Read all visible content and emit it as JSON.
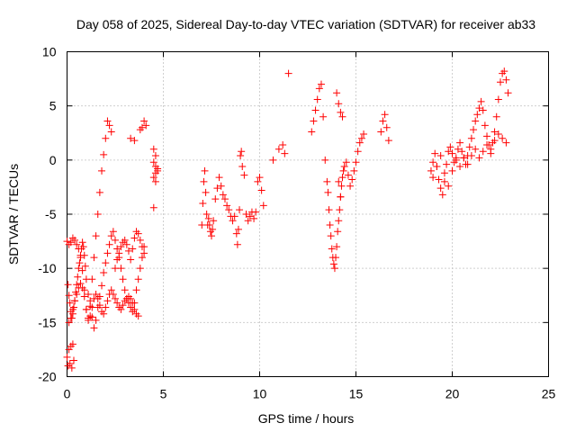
{
  "chart_data": {
    "type": "scatter",
    "title": "Day 058 of 2025, Sidereal Day-to-day VTEC variation (SDTVAR) for receiver ab33",
    "xlabel": "GPS time / hours",
    "ylabel": "SDTVAR / TECUs",
    "xlim": [
      0,
      25
    ],
    "ylim": [
      -20,
      10
    ],
    "xticks": [
      0,
      5,
      10,
      15,
      20,
      25
    ],
    "yticks": [
      -20,
      -15,
      -10,
      -5,
      0,
      5,
      10
    ],
    "xtick_labels": [
      "0",
      "5",
      "10",
      "15",
      "20",
      "25"
    ],
    "ytick_labels": [
      "-20",
      "-15",
      "-10",
      "-5",
      "0",
      "5",
      "10"
    ],
    "grid": true,
    "marker": "plus",
    "color": "#ff0000",
    "series": [
      {
        "name": "SDTVAR",
        "x": [
          0.0,
          0.05,
          0.1,
          0.15,
          0.2,
          0.25,
          0.3,
          0.35,
          0.05,
          0.1,
          0.15,
          0.2,
          0.25,
          0.3,
          0.35,
          0.4,
          0.45,
          0.5,
          0.55,
          0.6,
          0.65,
          0.7,
          0.75,
          0.8,
          0.85,
          0.9,
          0.95,
          1.0,
          1.1,
          1.2,
          1.3,
          1.4,
          1.5,
          1.6,
          1.7,
          1.8,
          1.9,
          2.0,
          2.1,
          2.2,
          2.3,
          2.4,
          2.5,
          2.6,
          2.7,
          2.8,
          2.9,
          3.0,
          3.1,
          3.2,
          3.3,
          3.4,
          3.5,
          3.6,
          3.7,
          3.8,
          3.9,
          4.0,
          0.0,
          0.1,
          0.2,
          0.3,
          0.4,
          0.5,
          0.6,
          0.7,
          0.8,
          0.9,
          1.0,
          1.1,
          1.2,
          1.3,
          1.4,
          1.5,
          1.6,
          1.7,
          1.8,
          1.9,
          2.0,
          2.1,
          2.2,
          2.3,
          0.1,
          0.2,
          0.3,
          0.4,
          0.5,
          0.6,
          0.7,
          0.8,
          0.9,
          1.0,
          1.1,
          1.2,
          1.3,
          1.4,
          1.5,
          1.6,
          1.7,
          1.8,
          1.9,
          2.0,
          2.1,
          2.2,
          2.3,
          2.4,
          2.5,
          2.6,
          2.7,
          2.8,
          2.9,
          3.0,
          3.1,
          3.2,
          3.3,
          3.4,
          3.5,
          3.6,
          3.7,
          2.5,
          2.6,
          2.7,
          2.8,
          2.9,
          3.0,
          3.1,
          3.2,
          3.3,
          3.4,
          3.5,
          3.6,
          3.7,
          3.8,
          3.9,
          4.0,
          3.9,
          4.0,
          4.1,
          3.8,
          3.3,
          3.5,
          4.5,
          4.6,
          4.5,
          4.6,
          4.7,
          4.5,
          4.6,
          4.5,
          4.6,
          4.7
        ],
        "y": [
          -18.2,
          -19.0,
          -17.5,
          -18.8,
          -17.2,
          -19.2,
          -17.0,
          -18.5,
          -11.5,
          -12.5,
          -13.2,
          -14.0,
          -14.6,
          -14.2,
          -13.6,
          -13.0,
          -12.2,
          -11.5,
          -10.8,
          -10.0,
          -9.5,
          -8.8,
          -8.2,
          -7.6,
          -8.0,
          -8.8,
          -9.8,
          -11.0,
          -12.4,
          -13.5,
          -14.5,
          -15.5,
          -14.8,
          -13.6,
          -12.6,
          -11.6,
          -10.4,
          -9.5,
          -8.6,
          -7.8,
          -7.0,
          -6.6,
          -7.4,
          -8.2,
          -9.0,
          -10.0,
          -11.0,
          -12.0,
          -12.8,
          -13.2,
          -13.6,
          -14.0,
          -13.2,
          -12.0,
          -11.0,
          -10.0,
          -9.0,
          -8.0,
          -7.5,
          -7.8,
          -7.6,
          -7.2,
          -7.4,
          -7.8,
          -8.2,
          -9.0,
          -10.2,
          -12.0,
          -13.8,
          -14.6,
          -13.0,
          -11.0,
          -9.0,
          -7.0,
          -5.0,
          -3.0,
          -1.0,
          0.5,
          2.0,
          3.6,
          3.2,
          2.6,
          -15.0,
          -14.6,
          -13.8,
          -13.0,
          -12.4,
          -11.8,
          -11.4,
          -11.8,
          -12.6,
          -13.8,
          -14.8,
          -14.4,
          -13.6,
          -12.8,
          -12.4,
          -12.8,
          -13.4,
          -14.0,
          -14.2,
          -13.6,
          -13.0,
          -12.4,
          -12.0,
          -12.4,
          -12.8,
          -13.2,
          -13.6,
          -13.8,
          -13.4,
          -13.0,
          -12.8,
          -12.6,
          -12.8,
          -13.2,
          -13.8,
          -14.2,
          -14.4,
          -10.0,
          -9.2,
          -8.6,
          -8.0,
          -7.6,
          -7.4,
          -7.8,
          -8.4,
          -9.2,
          -8.2,
          -7.2,
          -6.6,
          -6.8,
          -7.4,
          -8.0,
          -8.6,
          3.0,
          3.6,
          3.2,
          2.8,
          2.0,
          1.8,
          1.0,
          0.4,
          -0.2,
          -0.6,
          -1.0,
          -1.6,
          -2.0,
          -4.4,
          -1.2,
          -0.8
        ],
        "x2": [
          7.0,
          7.05,
          7.1,
          7.15,
          7.2,
          7.25,
          7.3,
          7.35,
          7.4,
          7.45,
          7.5,
          7.55,
          7.6,
          7.7,
          7.8,
          7.9,
          8.0,
          8.1,
          8.2,
          8.3,
          8.4,
          8.5,
          8.6,
          8.7,
          8.8,
          8.85,
          8.9,
          8.95,
          9.0,
          9.05,
          9.1,
          9.2,
          9.3,
          9.4,
          9.5,
          9.6,
          9.7,
          9.8,
          9.9,
          10.0,
          10.1,
          10.2,
          10.7,
          11.0,
          11.2,
          11.3,
          11.5
        ],
        "y2": [
          -6.0,
          -4.0,
          -2.0,
          -1.0,
          -3.0,
          -5.0,
          -6.0,
          -5.4,
          -6.0,
          -6.6,
          -7.0,
          -6.4,
          -5.6,
          -3.6,
          -2.6,
          -1.6,
          -2.4,
          -3.2,
          -3.6,
          -4.2,
          -4.6,
          -5.2,
          -5.6,
          -5.2,
          -6.8,
          -7.8,
          -6.4,
          -4.6,
          0.4,
          0.8,
          -0.6,
          -1.4,
          -5.0,
          -5.6,
          -5.2,
          -4.8,
          -5.4,
          -4.8,
          -2.0,
          -1.6,
          -2.8,
          -4.2,
          0.0,
          1.0,
          1.4,
          0.6,
          8.0
        ],
        "x3": [
          12.7,
          12.8,
          12.9,
          13.0,
          13.1,
          13.2,
          13.3,
          13.4,
          13.5,
          13.55,
          13.6,
          13.65,
          13.7,
          13.75,
          13.8,
          13.85,
          13.9,
          13.95,
          14.0,
          14.05,
          14.1,
          14.15,
          14.2,
          14.25,
          14.3,
          14.35,
          14.4,
          14.5,
          14.6,
          14.7,
          14.8,
          14.9,
          15.0,
          15.1,
          15.2,
          15.3,
          15.4,
          16.3,
          16.4,
          16.5,
          16.6,
          16.7,
          14.0,
          14.1,
          14.2,
          14.3,
          14.1,
          14.2
        ],
        "y3": [
          2.6,
          3.6,
          4.6,
          5.6,
          6.6,
          7.0,
          4.0,
          0.0,
          -2.0,
          -3.0,
          -4.6,
          -6.0,
          -7.0,
          -8.2,
          -9.0,
          -9.6,
          -10.0,
          -9.0,
          -8.0,
          -6.6,
          -5.6,
          -4.6,
          -3.4,
          -2.4,
          -1.6,
          -1.0,
          -0.6,
          -0.2,
          -1.4,
          -2.4,
          -1.8,
          -1.0,
          -0.2,
          0.8,
          1.6,
          2.0,
          2.4,
          2.6,
          3.6,
          4.2,
          3.0,
          1.8,
          6.2,
          5.2,
          4.4,
          4.0,
          -2.0,
          -3.4
        ],
        "x4": [
          18.9,
          19.0,
          19.1,
          19.2,
          19.3,
          19.4,
          19.5,
          19.6,
          19.7,
          19.8,
          19.9,
          20.0,
          20.1,
          20.2,
          20.3,
          20.4,
          20.5,
          20.6,
          20.7,
          20.8,
          20.9,
          21.0,
          21.1,
          21.2,
          21.3,
          21.4,
          21.5,
          21.6,
          21.7,
          21.8,
          21.9,
          22.0,
          22.1,
          22.2,
          22.3,
          22.4,
          22.5,
          22.6,
          22.7,
          22.8,
          22.9,
          19.0,
          19.2,
          19.4,
          19.6,
          19.8,
          20.0,
          20.2,
          20.4,
          20.6,
          20.8,
          21.0,
          21.2,
          21.4,
          21.6,
          21.8,
          22.0,
          22.2,
          22.4,
          22.6,
          22.8
        ],
        "y4": [
          -1.0,
          -0.2,
          0.6,
          -0.6,
          -1.8,
          -2.6,
          -3.2,
          -2.0,
          -0.4,
          0.8,
          1.2,
          0.6,
          -0.2,
          0.2,
          1.0,
          1.6,
          0.8,
          0.2,
          -0.4,
          0.4,
          1.2,
          2.0,
          2.8,
          3.6,
          4.2,
          4.8,
          5.4,
          4.6,
          3.2,
          2.2,
          1.4,
          0.6,
          1.6,
          2.6,
          4.0,
          5.6,
          7.2,
          8.0,
          8.2,
          7.4,
          6.2,
          -1.6,
          -0.6,
          0.4,
          -1.2,
          -2.4,
          -1.0,
          0.0,
          -0.6,
          0.2,
          -0.4,
          0.4,
          1.0,
          0.2,
          0.8,
          1.4,
          1.0,
          1.8,
          2.4,
          2.0,
          1.6
        ]
      }
    ]
  }
}
